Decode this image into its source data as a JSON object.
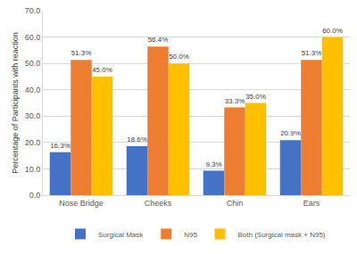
{
  "chart_data": {
    "type": "bar",
    "categories": [
      "Nose Bridge",
      "Cheeks",
      "Chin",
      "Ears"
    ],
    "series": [
      {
        "name": "Surgical Mask",
        "color": "#4472c4",
        "values": [
          16.3,
          18.6,
          9.3,
          20.9
        ],
        "value_labels": [
          "16.3%",
          "18.6%",
          "9.3%",
          "20.9%"
        ]
      },
      {
        "name": "N95",
        "color": "#ed7d31",
        "values": [
          51.3,
          56.4,
          33.3,
          51.3
        ],
        "value_labels": [
          "51.3%",
          "56.4%",
          "33.3%",
          "51.3%"
        ]
      },
      {
        "name": "Both (Surgical mask + N95)",
        "color": "#ffc000",
        "values": [
          45.0,
          50.0,
          35.0,
          60.0
        ],
        "value_labels": [
          "45.0%",
          "50.0%",
          "35.0%",
          "60.0%"
        ]
      }
    ],
    "y_label": "Percentage of Participants with reaction",
    "ylim": [
      0,
      70
    ],
    "yticks": [
      {
        "value": 0,
        "label": "0.0"
      },
      {
        "value": 10,
        "label": "10.0"
      },
      {
        "value": 20,
        "label": "20.0"
      },
      {
        "value": 30,
        "label": "30.0"
      },
      {
        "value": 40,
        "label": "40.0"
      },
      {
        "value": 50,
        "label": "50.0"
      },
      {
        "value": 60,
        "label": "60.0"
      },
      {
        "value": 70,
        "label": "70.0"
      }
    ],
    "grid": true,
    "legend": "bottom",
    "data_labels": true
  }
}
